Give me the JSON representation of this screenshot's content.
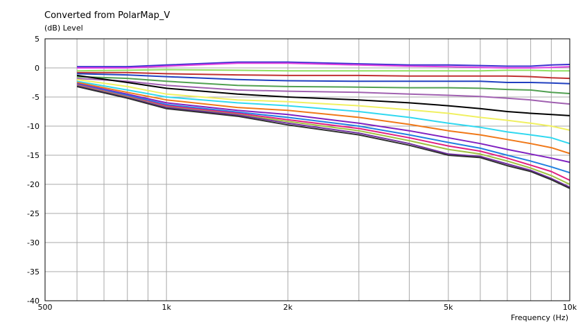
{
  "chart_data": {
    "type": "line",
    "title": "Converted from PolarMap_V",
    "ylabel": "(dB)  Level",
    "xlabel": "Frequency  (Hz)",
    "x_scale": "log",
    "xlim": [
      500,
      10000
    ],
    "ylim": [
      -40,
      5
    ],
    "grid": true,
    "y_ticks": [
      "5",
      "0",
      "-5",
      "-10",
      "-15",
      "-20",
      "-25",
      "-30",
      "-35",
      "-40"
    ],
    "x_ticks": [
      {
        "value": 500,
        "label": "500"
      },
      {
        "value": 1000,
        "label": "1k"
      },
      {
        "value": 2000,
        "label": "2k"
      },
      {
        "value": 5000,
        "label": "5k"
      },
      {
        "value": 10000,
        "label": "10k"
      }
    ],
    "x": [
      600,
      800,
      1000,
      1500,
      2000,
      3000,
      4000,
      5000,
      6000,
      7000,
      8000,
      9000,
      10000
    ],
    "series": [
      {
        "color": "#3a2fd0",
        "values": [
          0.2,
          0.2,
          0.5,
          1.0,
          1.0,
          0.7,
          0.5,
          0.5,
          0.4,
          0.3,
          0.3,
          0.5,
          0.6
        ]
      },
      {
        "color": "#e040e0",
        "values": [
          0.0,
          0.0,
          0.3,
          0.8,
          0.8,
          0.5,
          0.3,
          0.2,
          0.1,
          0.0,
          0.0,
          0.1,
          0.2
        ]
      },
      {
        "color": "#90e060",
        "values": [
          -0.5,
          -0.4,
          -0.3,
          -0.4,
          -0.5,
          -0.5,
          -0.5,
          -0.5,
          -0.5,
          -0.4,
          -0.4,
          -0.5,
          -0.5
        ]
      },
      {
        "color": "#c03030",
        "values": [
          -0.8,
          -0.8,
          -1.0,
          -1.2,
          -1.3,
          -1.3,
          -1.4,
          -1.4,
          -1.4,
          -1.4,
          -1.5,
          -1.7,
          -1.8
        ]
      },
      {
        "color": "#2040c0",
        "values": [
          -1.0,
          -1.2,
          -1.5,
          -2.0,
          -2.2,
          -2.3,
          -2.3,
          -2.3,
          -2.3,
          -2.5,
          -2.5,
          -2.6,
          -2.7
        ]
      },
      {
        "color": "#50a050",
        "values": [
          -1.5,
          -1.8,
          -2.3,
          -3.0,
          -3.2,
          -3.3,
          -3.4,
          -3.4,
          -3.5,
          -3.7,
          -3.8,
          -4.2,
          -4.4
        ]
      },
      {
        "color": "#a060b0",
        "values": [
          -1.8,
          -2.3,
          -3.0,
          -3.8,
          -4.0,
          -4.2,
          -4.5,
          -4.7,
          -4.9,
          -5.2,
          -5.5,
          -5.9,
          -6.2
        ]
      },
      {
        "color": "#000000",
        "values": [
          -1.3,
          -2.5,
          -3.5,
          -4.5,
          -5.0,
          -5.5,
          -6.0,
          -6.5,
          -7.0,
          -7.5,
          -7.8,
          -8.0,
          -8.2
        ]
      },
      {
        "color": "#f0f060",
        "values": [
          -2.0,
          -3.2,
          -4.5,
          -5.5,
          -5.8,
          -6.5,
          -7.2,
          -7.8,
          -8.5,
          -9.0,
          -9.5,
          -10.0,
          -10.7
        ]
      },
      {
        "color": "#30d8f0",
        "values": [
          -2.3,
          -3.8,
          -5.0,
          -6.0,
          -6.5,
          -7.5,
          -8.5,
          -9.5,
          -10.2,
          -11.0,
          -11.5,
          -12.0,
          -13.0
        ]
      },
      {
        "color": "#f07818",
        "values": [
          -2.5,
          -4.2,
          -5.5,
          -6.8,
          -7.3,
          -8.5,
          -9.7,
          -10.8,
          -11.5,
          -12.3,
          -13.0,
          -13.7,
          -14.7
        ]
      },
      {
        "color": "#8020c0",
        "values": [
          -2.7,
          -4.5,
          -6.0,
          -7.3,
          -8.0,
          -9.5,
          -10.8,
          -12.0,
          -13.0,
          -14.0,
          -14.8,
          -15.5,
          -16.2
        ]
      },
      {
        "color": "#2080e0",
        "values": [
          -2.8,
          -4.7,
          -6.3,
          -7.6,
          -8.5,
          -10.0,
          -11.5,
          -12.8,
          -13.8,
          -15.0,
          -16.0,
          -17.0,
          -18.0
        ]
      },
      {
        "color": "#e02080",
        "values": [
          -2.9,
          -4.9,
          -6.5,
          -7.8,
          -8.9,
          -10.4,
          -12.0,
          -13.4,
          -14.3,
          -15.5,
          -16.7,
          -17.8,
          -19.3
        ]
      },
      {
        "color": "#a0c040",
        "values": [
          -3.0,
          -5.0,
          -6.7,
          -8.0,
          -9.2,
          -10.8,
          -12.5,
          -14.0,
          -14.8,
          -16.0,
          -17.2,
          -18.5,
          -20.0
        ]
      },
      {
        "color": "#7030a0",
        "values": [
          -3.1,
          -5.1,
          -6.8,
          -8.1,
          -9.5,
          -11.2,
          -13.0,
          -14.8,
          -15.2,
          -16.5,
          -17.6,
          -19.0,
          -20.5
        ]
      },
      {
        "color": "#303030",
        "values": [
          -3.2,
          -5.2,
          -7.0,
          -8.3,
          -9.8,
          -11.5,
          -13.3,
          -15.0,
          -15.4,
          -16.8,
          -17.8,
          -19.2,
          -20.7
        ]
      }
    ]
  }
}
